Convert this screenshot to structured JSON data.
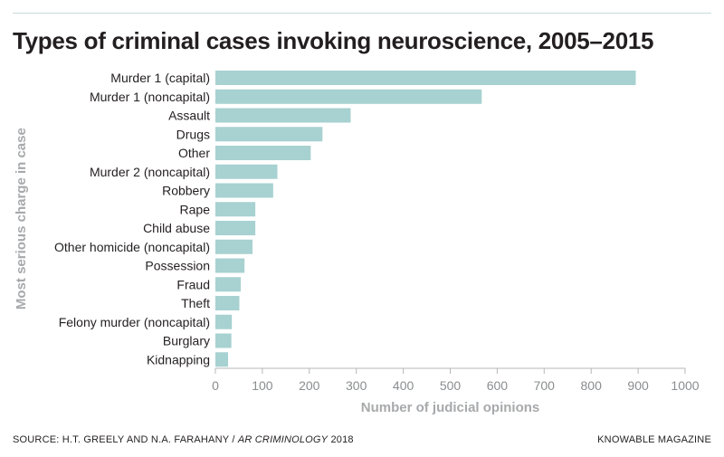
{
  "title": "Types of criminal cases invoking neuroscience, 2005–2015",
  "chart_data": {
    "type": "bar",
    "orientation": "horizontal",
    "categories": [
      "Murder 1 (capital)",
      "Murder 1 (noncapital)",
      "Assault",
      "Drugs",
      "Other",
      "Murder 2 (noncapital)",
      "Robbery",
      "Rape",
      "Child abuse",
      "Other homicide (noncapital)",
      "Possession",
      "Fraud",
      "Theft",
      "Felony murder (noncapital)",
      "Burglary",
      "Kidnapping"
    ],
    "values": [
      895,
      567,
      288,
      228,
      203,
      132,
      123,
      85,
      85,
      79,
      62,
      54,
      51,
      35,
      34,
      27
    ],
    "xlabel": "Number of judicial opinions",
    "ylabel": "Most serious charge in case",
    "xlim": [
      0,
      1000
    ],
    "xticks": [
      0,
      100,
      200,
      300,
      400,
      500,
      600,
      700,
      800,
      900,
      1000
    ],
    "grid": false,
    "bar_color": "#a8d1d1"
  },
  "footer": {
    "source_prefix": "SOURCE: H.T. GREELY AND N.A. FARAHANY / ",
    "source_journal": "AR CRIMINOLOGY",
    "source_suffix": " 2018",
    "brand": "KNOWABLE MAGAZINE"
  }
}
